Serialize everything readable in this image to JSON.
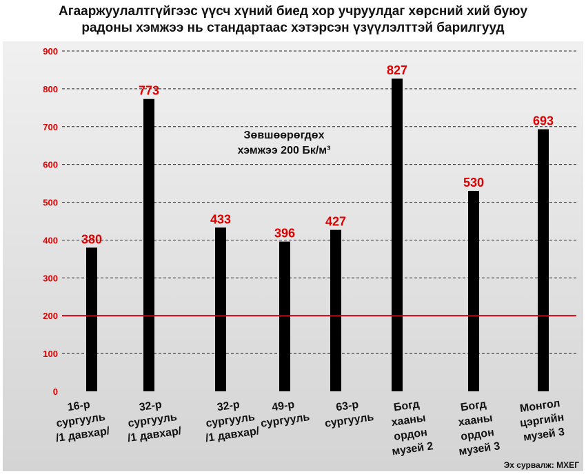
{
  "title_line1": "Агааржуулалтгүйгээс үүсч хүний биед хор учруулдаг хөрсний хий буюу",
  "title_line2": "радоны хэмжээ нь стандартаас хэтэрсэн үзүүлэлттэй барилгууд",
  "source": "Эх сурвалж: МХЕГ",
  "colors": {
    "bar": "#000000",
    "value_label": "#e00000",
    "tick_label": "#e00000",
    "threshold_line": "#c0000f",
    "background_top": "#f0f0f0",
    "background_bottom": "#d4d4d4"
  },
  "chart_data": {
    "type": "bar",
    "categories": [
      [
        "16-р",
        "сургууль",
        "/1 давхар/"
      ],
      [
        "32-р",
        "сургууль",
        "/1 давхар/"
      ],
      [
        "32-р",
        "сургууль",
        "/1 давхар/"
      ],
      [
        "49-р",
        "сургууль"
      ],
      [
        "63-р",
        "сургууль"
      ],
      [
        "Богд",
        "хааны",
        "ордон",
        "музей 2"
      ],
      [
        "Богд",
        "хааны",
        "ордон",
        "музей 3"
      ],
      [
        "Монгол",
        "цэргийн",
        "музей 3"
      ]
    ],
    "values": [
      380,
      773,
      433,
      396,
      427,
      827,
      530,
      693
    ],
    "yticks": [
      0,
      100,
      200,
      300,
      400,
      500,
      600,
      700,
      800,
      900
    ],
    "ylim": [
      0,
      900
    ],
    "grid": true,
    "threshold": {
      "value": 200,
      "label_line1": "Зөвшөөрөгдөх",
      "label_line2": "хэмжээ 200 Бк/м³"
    }
  }
}
